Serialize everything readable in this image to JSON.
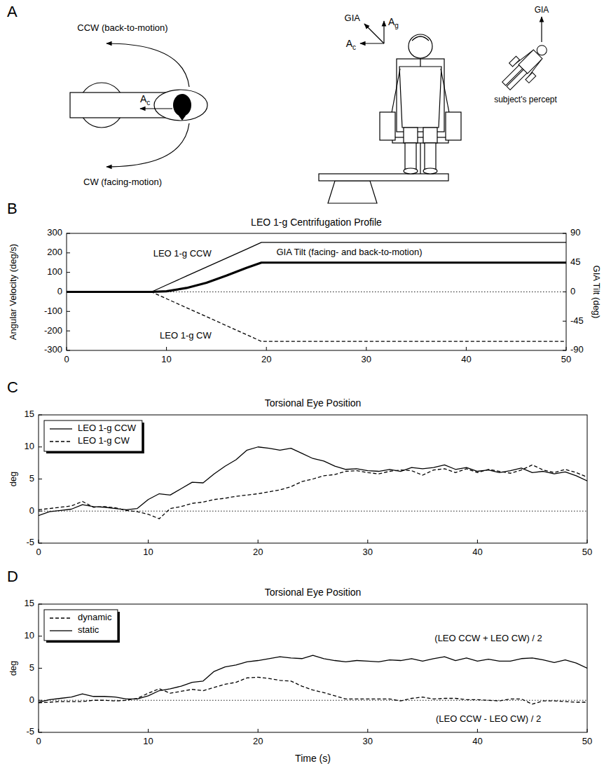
{
  "panel_labels": [
    "A",
    "B",
    "C",
    "D"
  ],
  "diagram": {
    "top_view": {
      "ccw_label": "CCW (back-to-motion)",
      "cw_label": "CW (facing-motion)",
      "centripetal": {
        "symbol": "A",
        "subscript": "c"
      }
    },
    "side_view": {
      "gia": "GIA",
      "gravity": {
        "symbol": "A",
        "subscript": "g"
      },
      "centripetal": {
        "symbol": "A",
        "subscript": "c"
      }
    },
    "percept": {
      "gia": "GIA",
      "label": "subject's percept"
    }
  },
  "chart_data": [
    {
      "type": "line",
      "title": "LEO 1-g Centrifugation Profile",
      "y_label": "Angular Velocity (deg/s)",
      "y2_label": "GIA Tilt (deg)",
      "x": [
        0,
        8.5,
        10,
        12,
        14,
        16,
        18,
        19.5,
        50
      ],
      "xlim": [
        0,
        50
      ],
      "xticks": [
        0,
        10,
        20,
        30,
        40,
        50
      ],
      "ylim": [
        -300,
        300
      ],
      "yticks": [
        -300,
        -200,
        -100,
        0,
        100,
        200,
        300
      ],
      "y2lim": [
        -90,
        90
      ],
      "y2ticks": [
        -90,
        -45,
        0,
        45,
        90
      ],
      "hlines": [
        0
      ],
      "series": [
        {
          "name": "LEO 1-g CCW",
          "color": "#000000",
          "line_style": "solid",
          "values": [
            0,
            0,
            35,
            81,
            127,
            173,
            219,
            254,
            254
          ]
        },
        {
          "name": "LEO 1-g CW",
          "color": "#000000",
          "line_style": "dashed",
          "values": [
            0,
            0,
            -35,
            -81,
            -127,
            -173,
            -219,
            -254,
            -254
          ]
        },
        {
          "name": "GIA Tilt (facing- and back-to-motion)",
          "color": "#000000",
          "line_style": "bold",
          "axis": "y2",
          "values": [
            0,
            0,
            1,
            6,
            14,
            25,
            37,
            45,
            45
          ]
        }
      ]
    },
    {
      "type": "line",
      "title": "Torsional Eye Position",
      "y_label": "deg",
      "x": [
        0,
        1,
        2,
        3,
        4,
        5,
        6,
        7,
        8,
        9,
        10,
        11,
        12,
        13,
        14,
        15,
        16,
        17,
        18,
        19,
        20,
        21,
        22,
        23,
        24,
        25,
        26,
        27,
        28,
        29,
        30,
        31,
        32,
        33,
        34,
        35,
        36,
        37,
        38,
        39,
        40,
        41,
        42,
        43,
        44,
        45,
        46,
        47,
        48,
        49,
        50
      ],
      "xlim": [
        0,
        50
      ],
      "xticks": [
        0,
        10,
        20,
        30,
        40,
        50
      ],
      "ylim": [
        -5,
        15
      ],
      "yticks": [
        -5,
        0,
        5,
        10,
        15
      ],
      "hlines": [
        0
      ],
      "legend": "upper left",
      "series": [
        {
          "name": "LEO 1-g CCW",
          "color": "#000000",
          "line_style": "solid",
          "values": [
            -0.7,
            -0.1,
            0.1,
            0.3,
            1.0,
            0.7,
            0.6,
            0.4,
            0.2,
            0.4,
            1.8,
            2.7,
            2.5,
            3.5,
            4.5,
            4.4,
            5.8,
            7.0,
            8.0,
            9.5,
            10.0,
            9.8,
            9.5,
            9.8,
            9.0,
            8.2,
            7.8,
            7.0,
            6.5,
            6.6,
            6.3,
            6.2,
            6.5,
            6.2,
            6.8,
            6.6,
            6.8,
            7.2,
            6.5,
            6.8,
            6.2,
            6.4,
            6.0,
            6.3,
            6.7,
            6.0,
            6.2,
            5.8,
            6.1,
            5.5,
            4.7
          ]
        },
        {
          "name": "LEO 1-g CW",
          "color": "#000000",
          "line_style": "dashed",
          "values": [
            0.2,
            0.4,
            0.6,
            0.8,
            1.5,
            0.6,
            0.7,
            0.5,
            0.1,
            -0.1,
            -0.5,
            -1.2,
            0.4,
            0.7,
            1.2,
            1.4,
            1.8,
            2.0,
            2.3,
            2.5,
            2.7,
            3.0,
            3.3,
            3.8,
            4.6,
            5.0,
            5.5,
            5.7,
            6.2,
            6.3,
            6.0,
            5.8,
            6.2,
            6.4,
            6.3,
            5.6,
            6.4,
            6.6,
            6.0,
            6.6,
            6.0,
            6.5,
            6.2,
            5.9,
            6.4,
            7.2,
            6.4,
            6.0,
            6.5,
            6.0,
            5.3
          ]
        }
      ]
    },
    {
      "type": "line",
      "title": "Torsional Eye Position",
      "y_label": "deg",
      "x_label": "Time (s)",
      "x": [
        0,
        1,
        2,
        3,
        4,
        5,
        6,
        7,
        8,
        9,
        10,
        11,
        12,
        13,
        14,
        15,
        16,
        17,
        18,
        19,
        20,
        21,
        22,
        23,
        24,
        25,
        26,
        27,
        28,
        29,
        30,
        31,
        32,
        33,
        34,
        35,
        36,
        37,
        38,
        39,
        40,
        41,
        42,
        43,
        44,
        45,
        46,
        47,
        48,
        49,
        50
      ],
      "xlim": [
        0,
        50
      ],
      "xticks": [
        0,
        10,
        20,
        30,
        40,
        50
      ],
      "ylim": [
        -5,
        15
      ],
      "yticks": [
        -5,
        0,
        5,
        10,
        15
      ],
      "hlines": [
        0
      ],
      "legend": "upper left",
      "annotations": [
        "(LEO CCW + LEO CW) / 2",
        "(LEO CCW - LEO CW) / 2"
      ],
      "series": [
        {
          "name": "dynamic",
          "color": "#000000",
          "line_style": "dashed",
          "values": [
            -0.4,
            -0.3,
            -0.2,
            -0.2,
            -0.2,
            0.0,
            0.0,
            -0.1,
            0.0,
            0.3,
            1.1,
            1.8,
            1.1,
            1.4,
            1.7,
            1.5,
            2.0,
            2.5,
            2.8,
            3.5,
            3.6,
            3.4,
            3.1,
            3.0,
            2.2,
            1.6,
            1.2,
            0.7,
            0.2,
            0.2,
            0.2,
            0.2,
            0.2,
            -0.1,
            0.3,
            0.5,
            0.2,
            0.3,
            0.3,
            0.1,
            0.1,
            0.0,
            -0.1,
            0.2,
            0.2,
            -0.6,
            -0.1,
            -0.1,
            -0.2,
            -0.3,
            -0.3
          ]
        },
        {
          "name": "static",
          "color": "#000000",
          "line_style": "solid",
          "values": [
            -0.3,
            0.1,
            0.3,
            0.5,
            1.0,
            0.6,
            0.6,
            0.5,
            0.2,
            0.2,
            0.7,
            1.5,
            1.8,
            2.2,
            2.8,
            3.0,
            4.5,
            5.2,
            5.5,
            6.0,
            6.2,
            6.5,
            6.8,
            6.6,
            6.5,
            7.0,
            6.5,
            6.2,
            6.0,
            6.2,
            6.1,
            6.0,
            6.3,
            6.2,
            6.5,
            6.1,
            6.5,
            6.8,
            6.2,
            6.6,
            6.1,
            6.4,
            6.1,
            6.1,
            6.5,
            6.6,
            6.3,
            5.9,
            6.3,
            5.8,
            5.0
          ]
        }
      ]
    }
  ]
}
